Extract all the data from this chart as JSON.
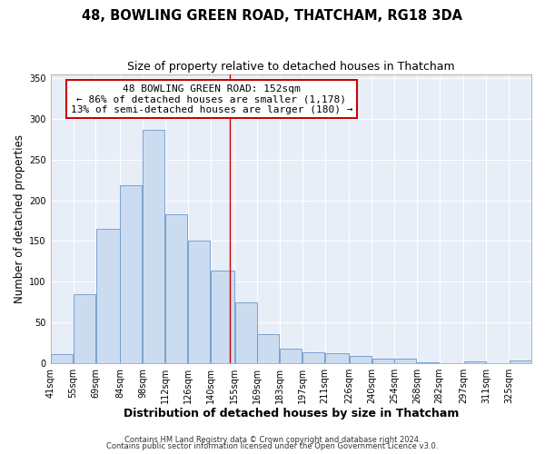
{
  "title": "48, BOWLING GREEN ROAD, THATCHAM, RG18 3DA",
  "subtitle": "Size of property relative to detached houses in Thatcham",
  "xlabel": "Distribution of detached houses by size in Thatcham",
  "ylabel": "Number of detached properties",
  "bin_labels": [
    "41sqm",
    "55sqm",
    "69sqm",
    "84sqm",
    "98sqm",
    "112sqm",
    "126sqm",
    "140sqm",
    "155sqm",
    "169sqm",
    "183sqm",
    "197sqm",
    "211sqm",
    "226sqm",
    "240sqm",
    "254sqm",
    "268sqm",
    "282sqm",
    "297sqm",
    "311sqm",
    "325sqm"
  ],
  "bar_heights": [
    11,
    84,
    165,
    218,
    287,
    183,
    150,
    114,
    75,
    35,
    18,
    13,
    12,
    9,
    5,
    5,
    1,
    0,
    2,
    0,
    3
  ],
  "bar_color": "#ccdcf0",
  "bar_edge_color": "#6b96c8",
  "property_line_x": 152,
  "bin_edges": [
    41,
    55,
    69,
    84,
    98,
    112,
    126,
    140,
    155,
    169,
    183,
    197,
    211,
    226,
    240,
    254,
    268,
    282,
    297,
    311,
    325,
    339
  ],
  "annotation_title": "48 BOWLING GREEN ROAD: 152sqm",
  "annotation_line1": "← 86% of detached houses are smaller (1,178)",
  "annotation_line2": "13% of semi-detached houses are larger (180) →",
  "annotation_box_color": "#ffffff",
  "annotation_box_edge": "#cc0000",
  "vline_color": "#cc0000",
  "ylim": [
    0,
    355
  ],
  "yticks": [
    0,
    50,
    100,
    150,
    200,
    250,
    300,
    350
  ],
  "footer1": "Contains HM Land Registry data © Crown copyright and database right 2024.",
  "footer2": "Contains public sector information licensed under the Open Government Licence v3.0.",
  "plot_bg_color": "#e8eef8",
  "fig_bg_color": "#ffffff",
  "grid_color": "#ffffff",
  "title_fontsize": 10.5,
  "subtitle_fontsize": 9,
  "axis_label_fontsize": 8.5,
  "tick_fontsize": 7,
  "footer_fontsize": 6,
  "annotation_fontsize": 8
}
